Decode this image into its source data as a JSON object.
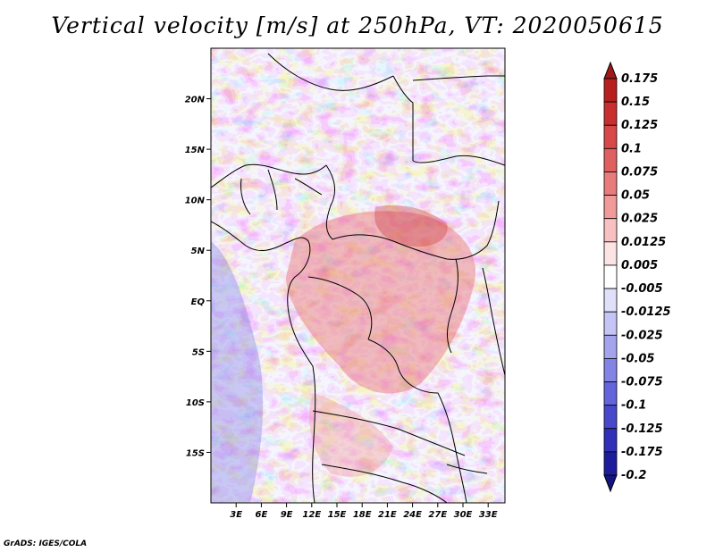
{
  "title": "Vertical velocity [m/s] at 250hPa, VT: 2020050615",
  "credit": "GrADS: IGES/COLA",
  "map": {
    "lat_ticks": [
      "20N",
      "15N",
      "10N",
      "5N",
      "EQ",
      "5S",
      "10S",
      "15S"
    ],
    "lat_values": [
      20,
      15,
      10,
      5,
      0,
      -5,
      -10,
      -15
    ],
    "lon_ticks": [
      "3E",
      "6E",
      "9E",
      "12E",
      "15E",
      "18E",
      "21E",
      "24E",
      "27E",
      "30E",
      "33E"
    ],
    "lon_values": [
      3,
      6,
      9,
      12,
      15,
      18,
      21,
      24,
      27,
      30,
      33
    ],
    "lon_range": [
      0,
      35
    ],
    "lat_range": [
      -20,
      25
    ]
  },
  "colorbar": {
    "labels": [
      "0.175",
      "0.15",
      "0.125",
      "0.1",
      "0.075",
      "0.05",
      "0.025",
      "0.0125",
      "0.005",
      "-0.005",
      "-0.0125",
      "-0.025",
      "-0.05",
      "-0.075",
      "-0.1",
      "-0.125",
      "-0.175",
      "-0.2"
    ],
    "colors": [
      "#a01818",
      "#b82020",
      "#c83030",
      "#d84848",
      "#e06060",
      "#e87c7c",
      "#f09a9a",
      "#f8c0c0",
      "#fde4e4",
      "#ffffff",
      "#e0e0fa",
      "#c4c4f6",
      "#a4a4ee",
      "#8484e6",
      "#6464dc",
      "#4848cc",
      "#3030b8",
      "#1c1c9c",
      "#14147c"
    ]
  }
}
